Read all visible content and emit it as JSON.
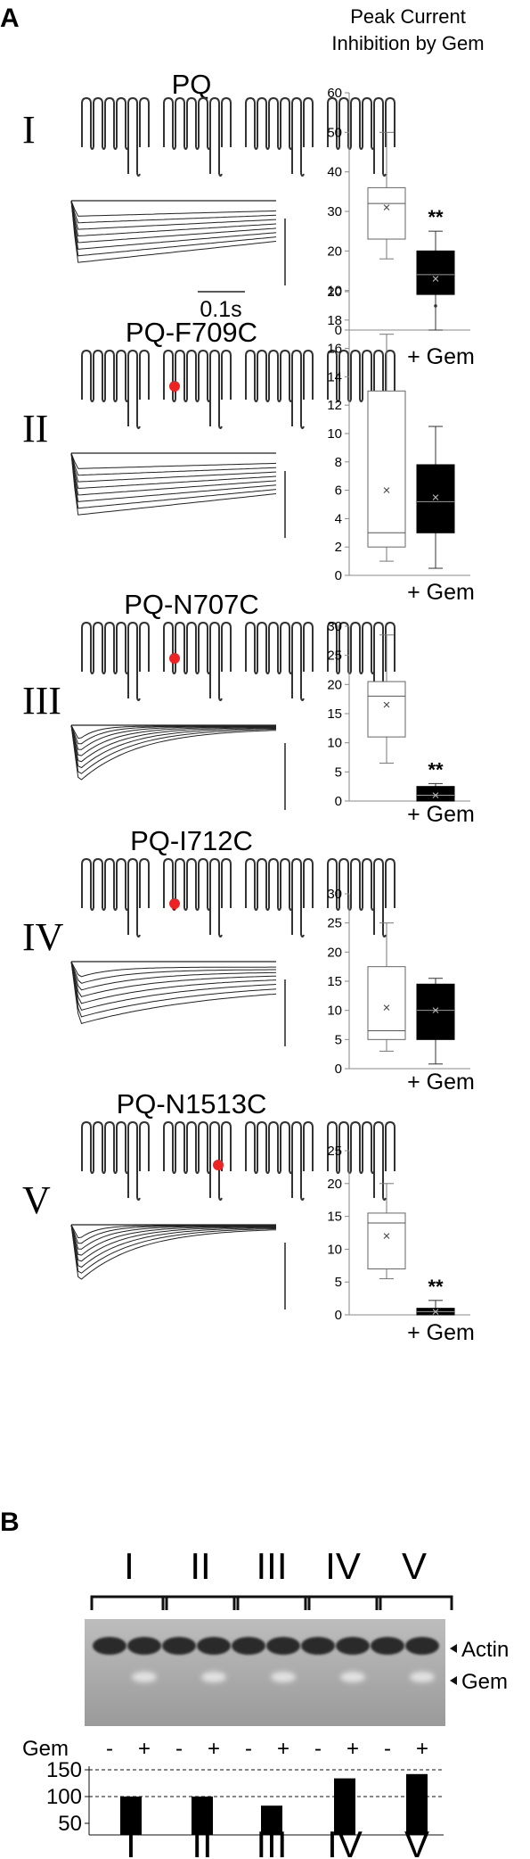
{
  "panel_a_label": "A",
  "panel_b_label": "B",
  "header": [
    "Peak Current",
    "Inhibition by Gem"
  ],
  "scale_bar_label": "0.1s",
  "significance": "**",
  "gem_axis_label": "+ Gem",
  "rows": [
    {
      "roman": "I",
      "construct": "PQ",
      "mutation_position": null
    },
    {
      "roman": "II",
      "construct": "PQ-F709C",
      "mutation_position": "IS6-top"
    },
    {
      "roman": "III",
      "construct": "PQ-N707C",
      "mutation_position": "IS6-top"
    },
    {
      "roman": "IV",
      "construct": "PQ-I712C",
      "mutation_position": "IS6-mid"
    },
    {
      "roman": "V",
      "construct": "PQ-N1513C",
      "mutation_position": "IIIS6"
    }
  ],
  "chart_data": [
    {
      "type": "box",
      "ylim": [
        0,
        60
      ],
      "yticks": [
        0,
        10,
        20,
        30,
        40,
        50,
        60
      ],
      "series": [
        {
          "name": "",
          "color": "#ffffff",
          "min": 18,
          "q1": 23,
          "median": 32,
          "q3": 36,
          "max": 50,
          "mean": 31
        },
        {
          "name": "+ Gem",
          "color": "#000000",
          "min": 0,
          "q1": 9,
          "median": 14,
          "q3": 20,
          "max": 25,
          "mean": 13
        }
      ],
      "significant": true
    },
    {
      "type": "box",
      "ylim": [
        0,
        20
      ],
      "yticks": [
        0,
        2,
        4,
        6,
        8,
        10,
        12,
        14,
        16,
        18,
        20
      ],
      "series": [
        {
          "name": "",
          "color": "#ffffff",
          "min": 1,
          "q1": 2,
          "median": 3,
          "q3": 13,
          "max": 17,
          "mean": 6
        },
        {
          "name": "+ Gem",
          "color": "#000000",
          "min": 0.5,
          "q1": 3,
          "median": 5.2,
          "q3": 7.8,
          "max": 10.5,
          "mean": 5.5,
          "outlier": 19
        }
      ],
      "significant": false
    },
    {
      "type": "box",
      "ylim": [
        0,
        30
      ],
      "yticks": [
        0,
        5,
        10,
        15,
        20,
        25,
        30
      ],
      "series": [
        {
          "name": "",
          "color": "#ffffff",
          "min": 6.5,
          "q1": 11,
          "median": 18,
          "q3": 20.5,
          "max": 28.5,
          "mean": 16.5
        },
        {
          "name": "+ Gem",
          "color": "#000000",
          "min": 0,
          "q1": 0,
          "median": 1,
          "q3": 2.5,
          "max": 3,
          "mean": 1
        }
      ],
      "significant": true
    },
    {
      "type": "box",
      "ylim": [
        0,
        30
      ],
      "yticks": [
        0,
        5,
        10,
        15,
        20,
        25,
        30
      ],
      "series": [
        {
          "name": "",
          "color": "#ffffff",
          "min": 3,
          "q1": 5,
          "median": 6.5,
          "q3": 17.5,
          "max": 25,
          "mean": 10.5
        },
        {
          "name": "+ Gem",
          "color": "#000000",
          "min": 0.8,
          "q1": 5,
          "median": 10,
          "q3": 14.5,
          "max": 15.5,
          "mean": 10
        }
      ],
      "significant": false
    },
    {
      "type": "box",
      "ylim": [
        0,
        25
      ],
      "yticks": [
        0,
        5,
        10,
        15,
        20,
        25
      ],
      "series": [
        {
          "name": "",
          "color": "#ffffff",
          "min": 5.5,
          "q1": 7,
          "median": 14,
          "q3": 15.5,
          "max": 20,
          "mean": 12
        },
        {
          "name": "+ Gem",
          "color": "#000000",
          "min": 0,
          "q1": 0,
          "median": 0.5,
          "q3": 1,
          "max": 2.2,
          "mean": 0.5
        }
      ],
      "significant": true
    },
    {
      "type": "bar",
      "categories": [
        "I",
        "II",
        "III",
        "IV",
        "V"
      ],
      "values": [
        100,
        100,
        83,
        134,
        142
      ],
      "yticks": [
        50,
        100,
        150
      ],
      "ylim": [
        50,
        150
      ],
      "reference_lines": [
        100,
        150
      ]
    }
  ],
  "blot": {
    "groups": [
      "I",
      "II",
      "III",
      "IV",
      "V"
    ],
    "labels": {
      "actin": "Actin",
      "gem": "Gem"
    },
    "gem_row_label": "Gem",
    "lane_signs": [
      "-",
      "+",
      "-",
      "+",
      "-",
      "+",
      "-",
      "+",
      "-",
      "+"
    ]
  }
}
